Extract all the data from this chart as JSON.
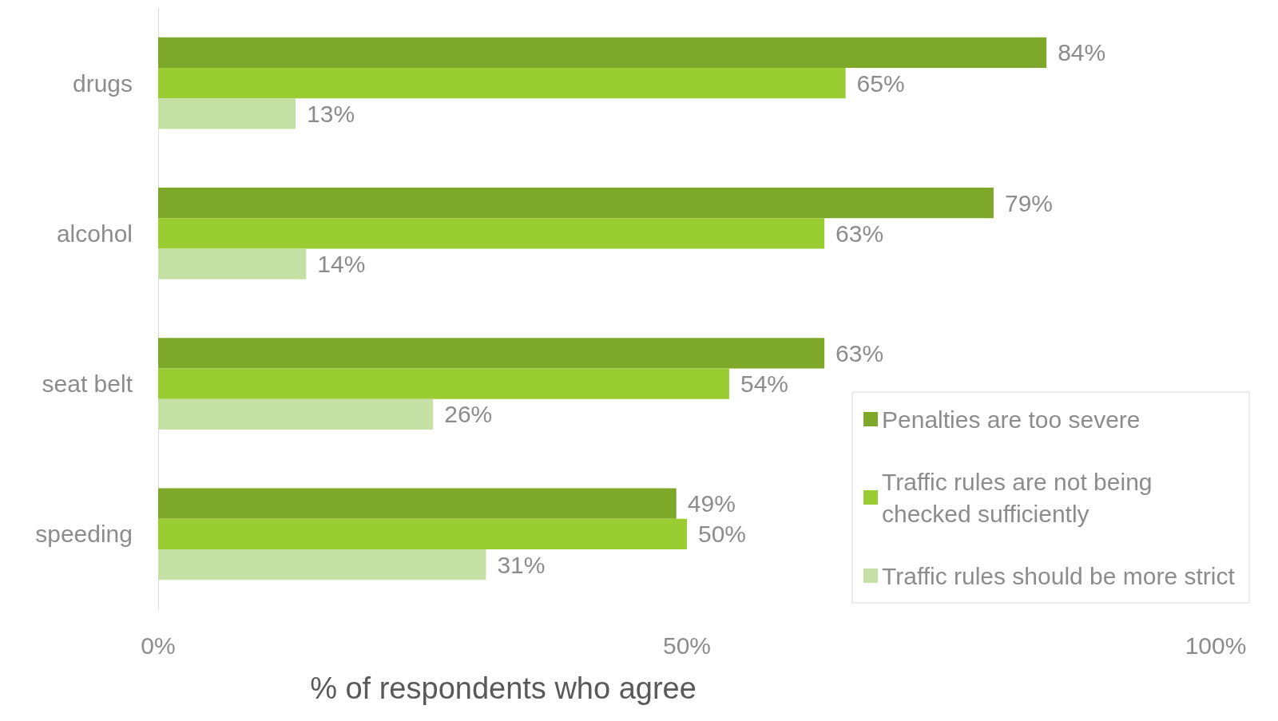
{
  "chart_data": {
    "type": "bar",
    "orientation": "horizontal",
    "xlabel": "% of respondents who agree",
    "categories": [
      "drugs",
      "alcohol",
      "seat belt",
      "speeding"
    ],
    "series": [
      {
        "name": "Penalties are too severe",
        "color": "#7ea82a",
        "values": [
          84,
          79,
          63,
          49
        ],
        "value_labels": [
          "84%",
          "79%",
          "63%",
          "49%"
        ]
      },
      {
        "name": "Traffic rules are not being checked sufficiently",
        "color": "#9acd32",
        "values": [
          65,
          63,
          54,
          50
        ],
        "value_labels": [
          "65%",
          "63%",
          "54%",
          "50%"
        ]
      },
      {
        "name": "Traffic rules should be more strict",
        "color": "#c5e0a5",
        "values": [
          13,
          14,
          26,
          31
        ],
        "value_labels": [
          "13%",
          "14%",
          "26%",
          "31%"
        ]
      }
    ],
    "xlim": [
      0,
      100
    ],
    "xticks": [
      {
        "value": 0,
        "label": "0%"
      },
      {
        "value": 50,
        "label": "50%"
      },
      {
        "value": 100,
        "label": "100%"
      }
    ],
    "grid": false,
    "legend": "bottom right"
  }
}
